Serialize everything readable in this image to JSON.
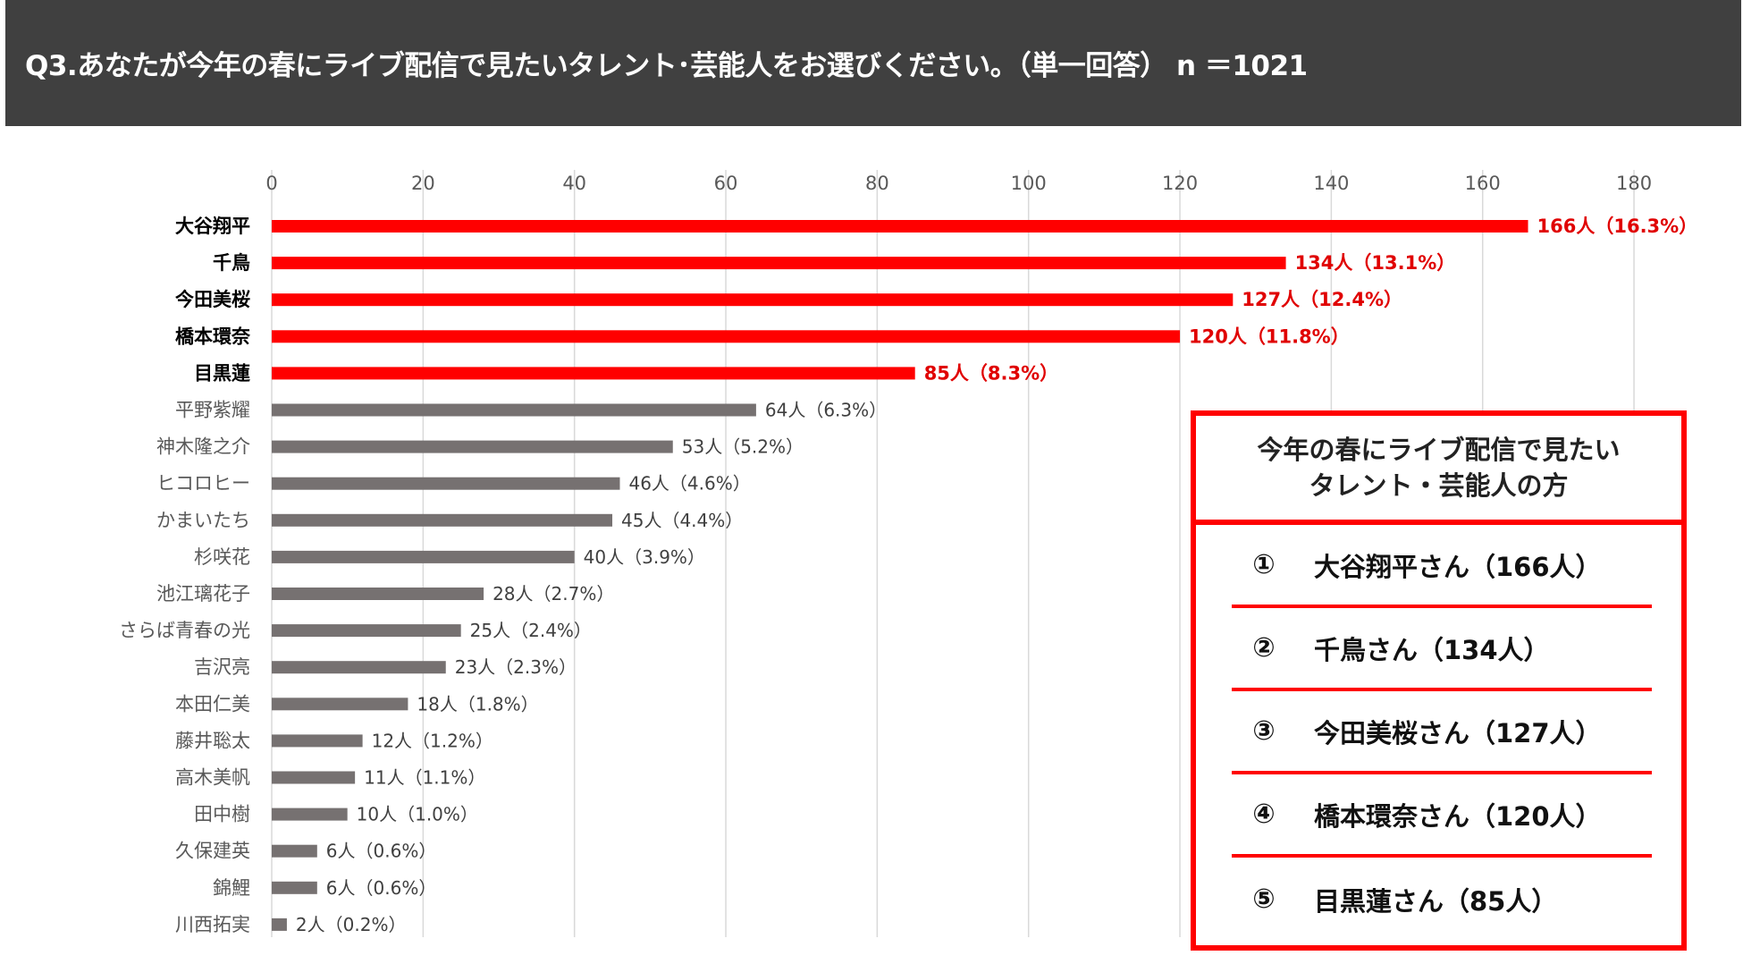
{
  "header": {
    "title": "Q3.あなたが今年の春にライブ配信で見たいタレント･芸能人をお選びください。（単一回答） n ＝1021"
  },
  "chart_data": {
    "type": "bar",
    "orientation": "horizontal",
    "title": "Q3.あなたが今年の春にライブ配信で見たいタレント･芸能人をお選びください。（単一回答） n ＝1021",
    "xlim": [
      0,
      180
    ],
    "ticks": [
      0,
      20,
      40,
      60,
      80,
      100,
      120,
      140,
      160,
      180
    ],
    "grid": true,
    "top_count": 5,
    "colors": {
      "top": "#ff0000",
      "rest": "#767171",
      "grid": "#d9d9d9"
    },
    "categories": [
      "大谷翔平",
      "千鳥",
      "今田美桜",
      "橋本環奈",
      "目黒蓮",
      "平野紫耀",
      "神木隆之介",
      "ヒコロヒー",
      "かまいたち",
      "杉咲花",
      "池江璃花子",
      "さらば青春の光",
      "吉沢亮",
      "本田仁美",
      "藤井聡太",
      "高木美帆",
      "田中樹",
      "久保建英",
      "錦鯉",
      "川西拓実"
    ],
    "values": [
      166,
      134,
      127,
      120,
      85,
      64,
      53,
      46,
      45,
      40,
      28,
      25,
      23,
      18,
      12,
      11,
      10,
      6,
      6,
      2
    ],
    "value_labels": [
      "166人（16.3%）",
      "134人（13.1%）",
      "127人（12.4%）",
      "120人（11.8%）",
      "85人（8.3%）",
      "64人（6.3%）",
      "53人（5.2%）",
      "46人（4.6%）",
      "45人（4.4%）",
      "40人（3.9%）",
      "28人（2.7%）",
      "25人（2.4%）",
      "23人（2.3%）",
      "18人（1.8%）",
      "12人（1.2%）",
      "11人（1.1%）",
      "10人（1.0%）",
      "6人（0.6%）",
      "6人（0.6%）",
      "2人（0.2%）"
    ]
  },
  "ranking_box": {
    "title_line1": "今年の春にライブ配信で見たい",
    "title_line2": "タレント・芸能人の方",
    "items": [
      {
        "num": "①",
        "text": "大谷翔平さん（166人）"
      },
      {
        "num": "②",
        "text": "千鳥さん（134人）"
      },
      {
        "num": "③",
        "text": "今田美桜さん（127人）"
      },
      {
        "num": "④",
        "text": "橋本環奈さん（120人）"
      },
      {
        "num": "⑤",
        "text": "目黒蓮さん（85人）"
      }
    ]
  }
}
